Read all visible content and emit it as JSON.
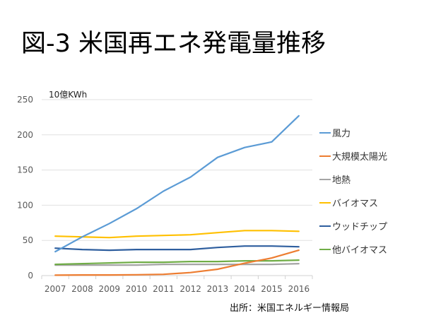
{
  "title": "図-3 米国再エネ発電量推移",
  "source_note": "出所：米国エネルギー情報局",
  "chart_data": {
    "type": "line",
    "title": "図-3 米国再エネ発電量推移",
    "ylabel": "10億KWh",
    "xlabel": "",
    "x": [
      "2007",
      "2008",
      "2009",
      "2010",
      "2011",
      "2012",
      "2013",
      "2014",
      "2015",
      "2016"
    ],
    "ylim": [
      0,
      250
    ],
    "yticks": [
      "0",
      "50",
      "100",
      "150",
      "200",
      "250"
    ],
    "grid": true,
    "legend_position": "right",
    "series": [
      {
        "name": "風力",
        "color": "#5B9BD5",
        "values": [
          34,
          55,
          74,
          95,
          120,
          140,
          168,
          182,
          190,
          227
        ]
      },
      {
        "name": "大規模太陽光",
        "color": "#ED7D31",
        "values": [
          0.6,
          0.9,
          0.9,
          1.2,
          1.8,
          4.3,
          9,
          17.7,
          25,
          36
        ]
      },
      {
        "name": "地熱",
        "color": "#A5A5A5",
        "values": [
          15,
          15,
          15,
          15,
          16,
          16,
          16,
          16,
          16,
          17
        ]
      },
      {
        "name": "バイオマス",
        "color": "#FFC000",
        "values": [
          56,
          55,
          54,
          56,
          57,
          58,
          61,
          64,
          64,
          63
        ]
      },
      {
        "name": "ウッドチップ",
        "color": "#2E5E9E",
        "values": [
          39,
          37,
          36,
          37,
          37,
          37,
          40,
          42,
          42,
          41
        ]
      },
      {
        "name": "他バイオマス",
        "color": "#70AD47",
        "values": [
          16,
          17,
          18,
          19,
          19,
          20,
          20,
          21,
          21,
          22
        ]
      }
    ]
  }
}
